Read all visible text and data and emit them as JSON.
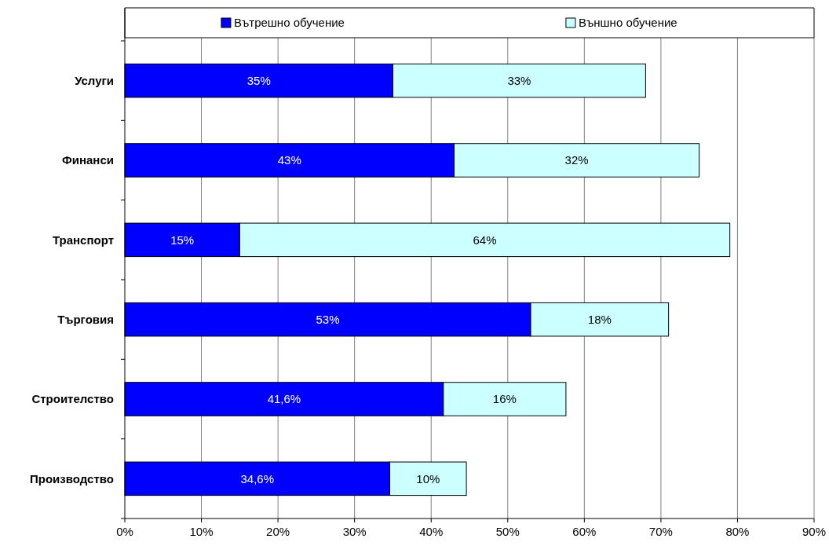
{
  "chart_data": {
    "type": "bar",
    "orientation": "horizontal",
    "stacked": true,
    "categories": [
      "Услуги",
      "Финанси",
      "Транспорт",
      "Търговия",
      "Строителство",
      "Производство"
    ],
    "series": [
      {
        "name": "Вътрешно обучение",
        "color": "#0000ff",
        "values": [
          35,
          43,
          15,
          53,
          41.6,
          34.6
        ],
        "value_labels": [
          "35%",
          "43%",
          "15%",
          "53%",
          "41,6%",
          "34,6%"
        ]
      },
      {
        "name": "Външно обучение",
        "color": "#ccffff",
        "values": [
          33,
          32,
          64,
          18,
          16,
          10
        ],
        "value_labels": [
          "33%",
          "32%",
          "64%",
          "18%",
          "16%",
          "10%"
        ]
      }
    ],
    "xlim": [
      0,
      90
    ],
    "xticks": [
      {
        "value": 0,
        "label": "0%"
      },
      {
        "value": 10,
        "label": "10%"
      },
      {
        "value": 20,
        "label": "20%"
      },
      {
        "value": 30,
        "label": "30%"
      },
      {
        "value": 40,
        "label": "40%"
      },
      {
        "value": 50,
        "label": "50%"
      },
      {
        "value": 60,
        "label": "60%"
      },
      {
        "value": 70,
        "label": "70%"
      },
      {
        "value": 80,
        "label": "80%"
      },
      {
        "value": 90,
        "label": "90%"
      }
    ],
    "grid": "x",
    "legend": "top"
  }
}
